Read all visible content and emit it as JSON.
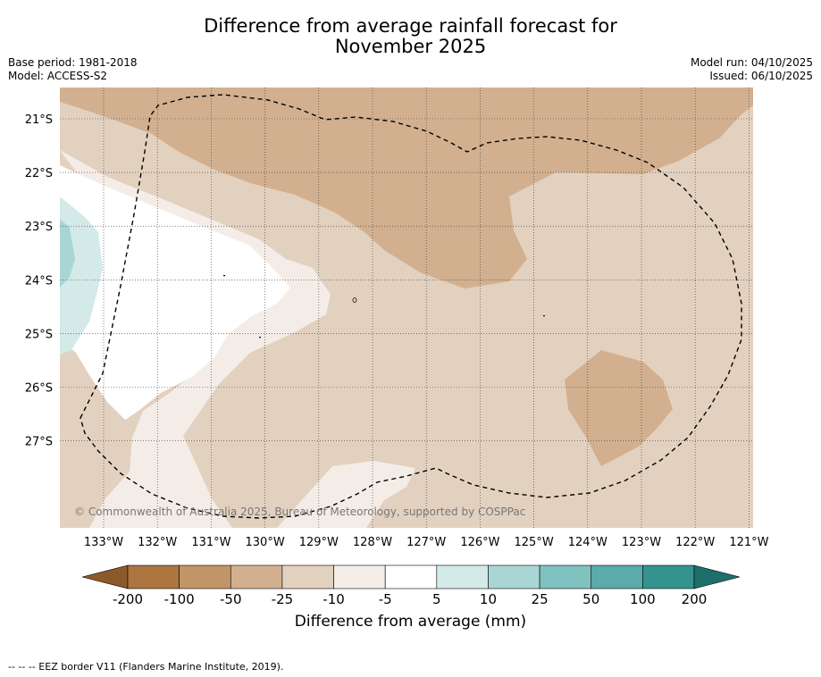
{
  "header": {
    "title_line1": "Difference from average rainfall forecast for",
    "title_line2": "November 2025",
    "base_period": "Base period: 1981-2018",
    "model": "Model: ACCESS-S2",
    "model_run": "Model run: 04/10/2025",
    "issued": "Issued: 06/10/2025"
  },
  "map": {
    "copyright": "© Commonwealth of Australia 2025, Bureau of Meteorology, supported by COSPPac",
    "lon_labels": [
      "133°W",
      "132°W",
      "131°W",
      "130°W",
      "129°W",
      "128°W",
      "127°W",
      "126°W",
      "125°W",
      "124°W",
      "123°W",
      "122°W",
      "121°W"
    ],
    "lat_labels": [
      "21°S",
      "22°S",
      "23°S",
      "24°S",
      "25°S",
      "26°S",
      "27°S"
    ]
  },
  "chart_data": {
    "type": "heatmap",
    "title": "Difference from average rainfall forecast for November 2025",
    "variable": "Difference from average (mm)",
    "lon_range": [
      -133.8,
      -120.8
    ],
    "lat_range": [
      -28.6,
      -20.4
    ],
    "levels": [
      -200,
      -100,
      -50,
      -25,
      -10,
      -5,
      5,
      10,
      25,
      50,
      100,
      200
    ],
    "colors": [
      "#8b5a2b",
      "#ad7640",
      "#c29568",
      "#d2b08f",
      "#e3d1bf",
      "#f4ede7",
      "#ffffff",
      "#d4eae9",
      "#a9d6d4",
      "#80c2c0",
      "#5aabaa",
      "#35938f",
      "#1d6f6c"
    ],
    "regions": [
      {
        "level": "-5 to 5",
        "color": "#ffffff"
      },
      {
        "level": "-10 to -5",
        "color": "#f4ede7"
      },
      {
        "level": "-25 to -10",
        "color": "#e3d1bf"
      },
      {
        "level": "-50 to -25",
        "color": "#d2b08f"
      },
      {
        "level": "5 to 10",
        "color": "#d4eae9"
      },
      {
        "level": "10 to 25",
        "color": "#a9d6d4"
      }
    ]
  },
  "colorbar": {
    "ticks": [
      "-200",
      "-100",
      "-50",
      "-25",
      "-10",
      "-5",
      "5",
      "10",
      "25",
      "50",
      "100",
      "200"
    ],
    "label": "Difference from average (mm)"
  },
  "footnote": "--  --  -- EEZ border V11 (Flanders Marine Institute, 2019)."
}
